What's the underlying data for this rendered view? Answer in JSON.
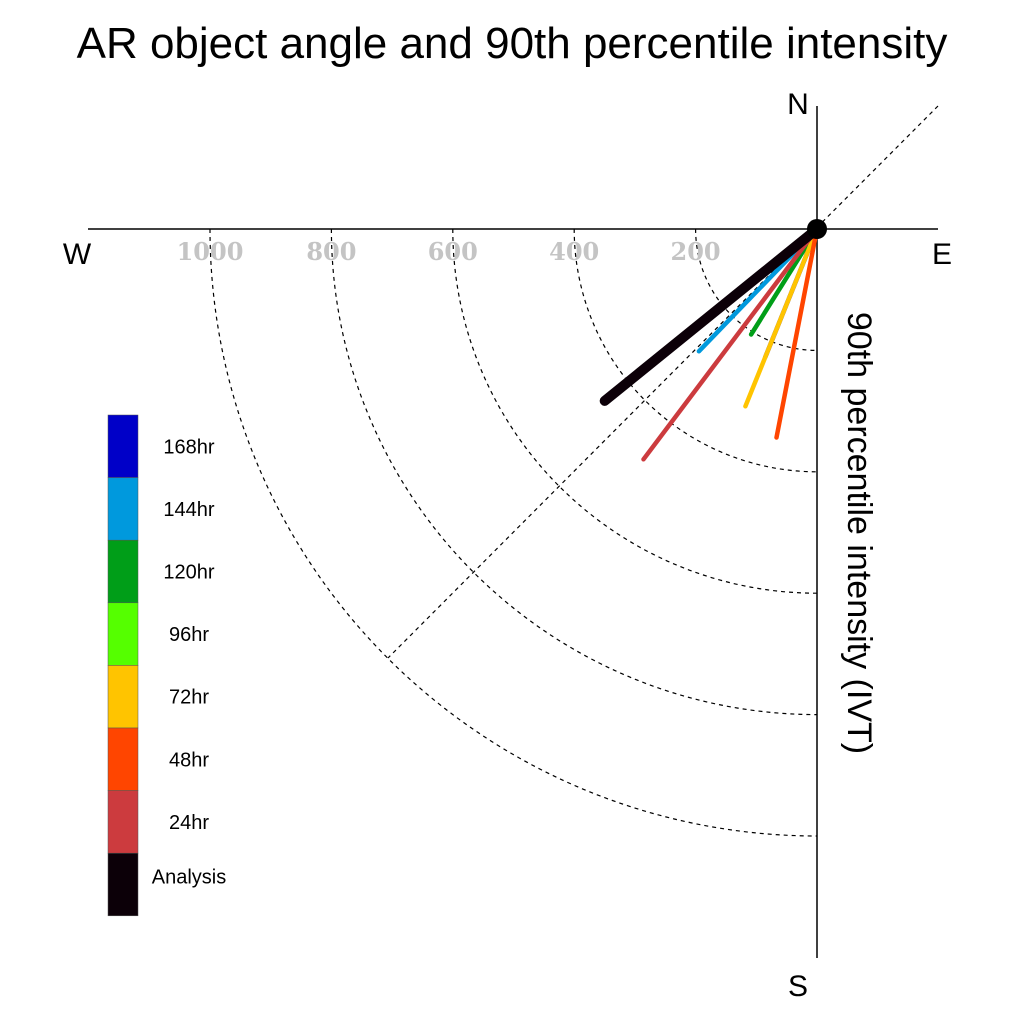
{
  "chart_data": {
    "type": "polar-vector",
    "title": "AR object angle and 90th percentile intensity",
    "ylabel": "90th percentile intensity (IVT)",
    "compass": {
      "north": "N",
      "south": "S",
      "east": "E",
      "west": "W"
    },
    "radial_ticks": [
      1000,
      800,
      600,
      400,
      200
    ],
    "radial_range": [
      0,
      1000
    ],
    "grid": true,
    "legend_position": "left",
    "series": [
      {
        "name": "Analysis",
        "color": "#0c0008",
        "angle_deg": 231,
        "value": 450
      },
      {
        "name": "24hr",
        "color": "#cc3b3e",
        "angle_deg": 217,
        "value": 475
      },
      {
        "name": "48hr",
        "color": "#ff4500",
        "angle_deg": 191,
        "value": 350
      },
      {
        "name": "72hr",
        "color": "#ffc400",
        "angle_deg": 202,
        "value": 315
      },
      {
        "name": "96hr",
        "color": "#55ff00",
        "angle_deg": 0,
        "value": 0
      },
      {
        "name": "120hr",
        "color": "#009e18",
        "angle_deg": 212,
        "value": 205
      },
      {
        "name": "144hr",
        "color": "#0099dd",
        "angle_deg": 224,
        "value": 280
      },
      {
        "name": "168hr",
        "color": "#0000c8",
        "angle_deg": 202,
        "value": 227
      }
    ],
    "legend_order": [
      "168hr",
      "144hr",
      "120hr",
      "96hr",
      "72hr",
      "48hr",
      "24hr",
      "Analysis"
    ]
  }
}
